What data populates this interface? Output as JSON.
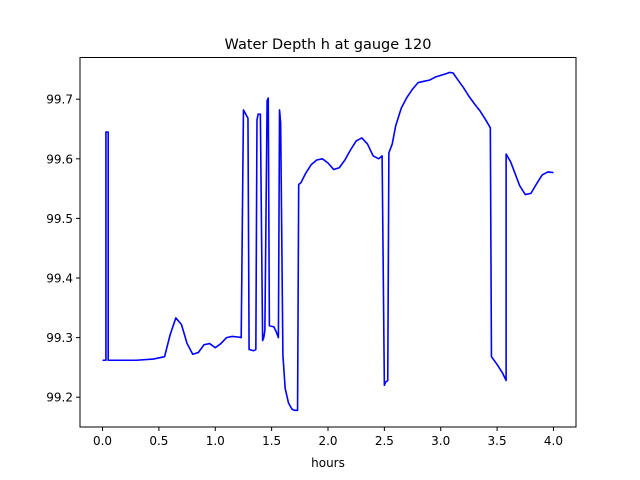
{
  "chart_data": {
    "type": "line",
    "title": "Water Depth h at gauge 120",
    "xlabel": "hours",
    "ylabel": "",
    "xlim": [
      -0.2,
      4.2
    ],
    "ylim": [
      99.15,
      99.77
    ],
    "xticks": [
      0.0,
      0.5,
      1.0,
      1.5,
      2.0,
      2.5,
      3.0,
      3.5,
      4.0
    ],
    "xtick_labels": [
      "0.0",
      "0.5",
      "1.0",
      "1.5",
      "2.0",
      "2.5",
      "3.0",
      "3.5",
      "4.0"
    ],
    "yticks": [
      99.2,
      99.3,
      99.4,
      99.5,
      99.6,
      99.7
    ],
    "ytick_labels": [
      "99.2",
      "99.3",
      "99.4",
      "99.5",
      "99.6",
      "99.7"
    ],
    "grid": false,
    "line_color": "#0000ff",
    "series": [
      {
        "x": [
          0.0,
          0.03,
          0.03,
          0.05,
          0.05,
          0.06,
          0.3,
          0.45,
          0.55,
          0.6,
          0.65,
          0.7,
          0.75,
          0.8,
          0.85,
          0.9,
          0.95,
          1.0,
          1.05,
          1.1,
          1.15,
          1.2,
          1.23,
          1.25,
          1.25,
          1.29,
          1.3,
          1.34,
          1.36,
          1.37,
          1.38,
          1.4,
          1.42,
          1.43,
          1.44,
          1.46,
          1.46,
          1.47,
          1.48,
          1.52,
          1.54,
          1.56,
          1.57,
          1.58,
          1.6,
          1.62,
          1.65,
          1.68,
          1.7,
          1.73,
          1.74,
          1.76,
          1.8,
          1.85,
          1.9,
          1.95,
          2.0,
          2.05,
          2.1,
          2.15,
          2.2,
          2.25,
          2.3,
          2.35,
          2.4,
          2.45,
          2.48,
          2.5,
          2.51,
          2.53,
          2.54,
          2.57,
          2.6,
          2.65,
          2.7,
          2.75,
          2.8,
          2.85,
          2.9,
          2.95,
          3.0,
          3.05,
          3.08,
          3.11,
          3.15,
          3.2,
          3.25,
          3.3,
          3.35,
          3.4,
          3.44,
          3.45,
          3.5,
          3.55,
          3.58,
          3.58,
          3.62,
          3.66,
          3.7,
          3.75,
          3.8,
          3.85,
          3.9,
          3.95,
          4.0
        ],
        "y": [
          99.262,
          99.262,
          99.645,
          99.645,
          99.262,
          99.262,
          99.262,
          99.264,
          99.268,
          99.305,
          99.333,
          99.322,
          99.29,
          99.272,
          99.275,
          99.288,
          99.29,
          99.283,
          99.29,
          99.3,
          99.302,
          99.301,
          99.3,
          99.682,
          99.682,
          99.668,
          99.28,
          99.278,
          99.28,
          99.665,
          99.675,
          99.675,
          99.295,
          99.3,
          99.312,
          99.698,
          99.698,
          99.702,
          99.32,
          99.318,
          99.31,
          99.3,
          99.682,
          99.66,
          99.27,
          99.215,
          99.19,
          99.18,
          99.178,
          99.178,
          99.557,
          99.56,
          99.575,
          99.59,
          99.598,
          99.6,
          99.593,
          99.582,
          99.585,
          99.598,
          99.615,
          99.63,
          99.635,
          99.625,
          99.605,
          99.6,
          99.605,
          99.22,
          99.225,
          99.228,
          99.61,
          99.625,
          99.655,
          99.685,
          99.703,
          99.717,
          99.728,
          99.73,
          99.732,
          99.737,
          99.74,
          99.743,
          99.745,
          99.744,
          99.733,
          99.72,
          99.705,
          99.692,
          99.68,
          99.665,
          99.652,
          99.268,
          99.255,
          99.24,
          99.228,
          99.608,
          99.595,
          99.575,
          99.555,
          99.54,
          99.542,
          99.558,
          99.573,
          99.578,
          99.577
        ]
      }
    ]
  }
}
